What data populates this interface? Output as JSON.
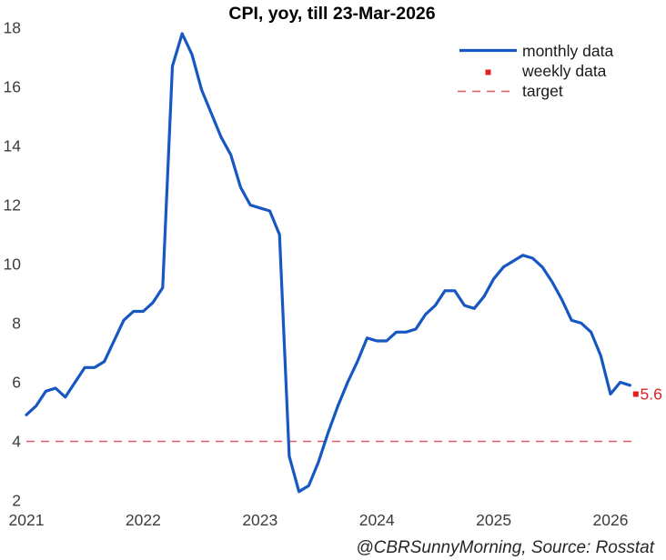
{
  "title": "CPI, yoy, till 23-Mar-2026",
  "attribution": "@CBRSunnyMorning, Source: Rosstat",
  "legend": {
    "monthly_label": "monthly data",
    "weekly_label": "weekly data",
    "target_label": "target"
  },
  "colors": {
    "monthly_line": "#1757c2",
    "weekly_marker": "#e02020",
    "weekly_value_text": "#e02020",
    "target_line": "#e05a64",
    "tick_text": "#3c3c3c"
  },
  "chart_data": {
    "type": "line",
    "title": "CPI, yoy, till 23-Mar-2026",
    "xlabel": "",
    "ylabel": "",
    "ylim": [
      2,
      18
    ],
    "y_ticks": [
      2,
      4,
      6,
      8,
      10,
      12,
      14,
      16,
      18
    ],
    "x_ticks": [
      "2021",
      "2022",
      "2023",
      "2024",
      "2025",
      "2026"
    ],
    "x_tick_month_index": [
      0,
      12,
      24,
      36,
      48,
      60
    ],
    "grid": false,
    "legend_position": "upper right",
    "target_value": 4,
    "series": [
      {
        "name": "monthly data",
        "frequency": "monthly",
        "start": "Dec-2020",
        "end": "Feb-2026",
        "values": [
          4.9,
          5.2,
          5.7,
          5.8,
          5.5,
          6.0,
          6.5,
          6.5,
          6.7,
          7.4,
          8.1,
          8.4,
          8.4,
          8.7,
          9.2,
          16.7,
          17.8,
          17.1,
          15.9,
          15.1,
          14.3,
          13.7,
          12.6,
          12.0,
          11.9,
          11.8,
          11.0,
          3.5,
          2.3,
          2.5,
          3.3,
          4.3,
          5.2,
          6.0,
          6.7,
          7.5,
          7.4,
          7.4,
          7.7,
          7.7,
          7.8,
          8.3,
          8.6,
          9.1,
          9.1,
          8.6,
          8.5,
          8.9,
          9.5,
          9.9,
          10.1,
          10.3,
          10.2,
          9.9,
          9.4,
          8.8,
          8.1,
          8.0,
          7.7,
          6.9,
          5.6,
          6.0,
          5.9
        ]
      },
      {
        "name": "weekly data",
        "points": [
          {
            "date": "23-Mar-2026",
            "month_index": 62.6,
            "value": 5.6,
            "label": "5.6"
          }
        ]
      }
    ]
  }
}
